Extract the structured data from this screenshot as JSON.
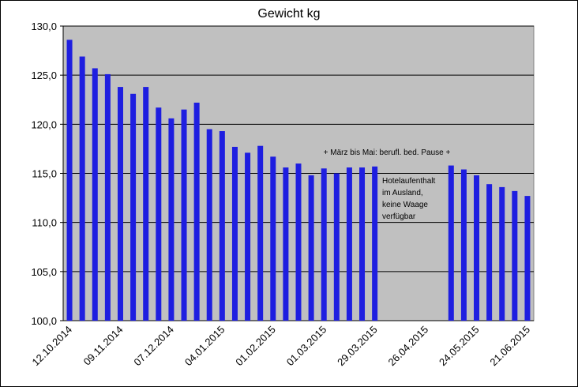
{
  "chart_data": {
    "type": "bar",
    "title": "Gewicht kg",
    "categories": [
      "12.10.2014",
      null,
      null,
      null,
      "09.11.2014",
      null,
      null,
      null,
      "07.12.2014",
      null,
      null,
      null,
      "04.01.2015",
      null,
      null,
      null,
      "01.02.2015",
      null,
      null,
      null,
      "01.03.2015",
      null,
      null,
      null,
      "29.03.2015",
      null,
      null,
      null,
      "26.04.2015",
      null,
      null,
      null,
      "24.05.2015",
      null,
      null,
      null,
      "21.06.2015"
    ],
    "values": [
      128.6,
      126.9,
      125.7,
      125.1,
      123.8,
      123.1,
      123.8,
      121.7,
      120.6,
      121.5,
      122.2,
      119.5,
      119.3,
      117.7,
      117.1,
      117.8,
      116.7,
      115.6,
      116.0,
      114.8,
      115.5,
      115.0,
      115.6,
      115.6,
      115.7,
      null,
      null,
      null,
      null,
      null,
      115.8,
      115.4,
      114.8,
      113.9,
      113.6,
      113.2,
      112.7
    ],
    "color": "#1e1ee0",
    "ylim": [
      100,
      130
    ],
    "yticks": [
      {
        "value": 100,
        "label": "100,0"
      },
      {
        "value": 105,
        "label": "105,0"
      },
      {
        "value": 110,
        "label": "110,0"
      },
      {
        "value": 115,
        "label": "115,0"
      },
      {
        "value": 120,
        "label": "120,0"
      },
      {
        "value": 125,
        "label": "125,0"
      },
      {
        "value": 130,
        "label": "130,0"
      }
    ],
    "grid": true,
    "annotations": [
      "+ März bis Mai: berufl. bed. Pause +",
      [
        "Hotelaufenthalt",
        "im Ausland,",
        "keine Waage",
        "verfügbar"
      ]
    ]
  }
}
